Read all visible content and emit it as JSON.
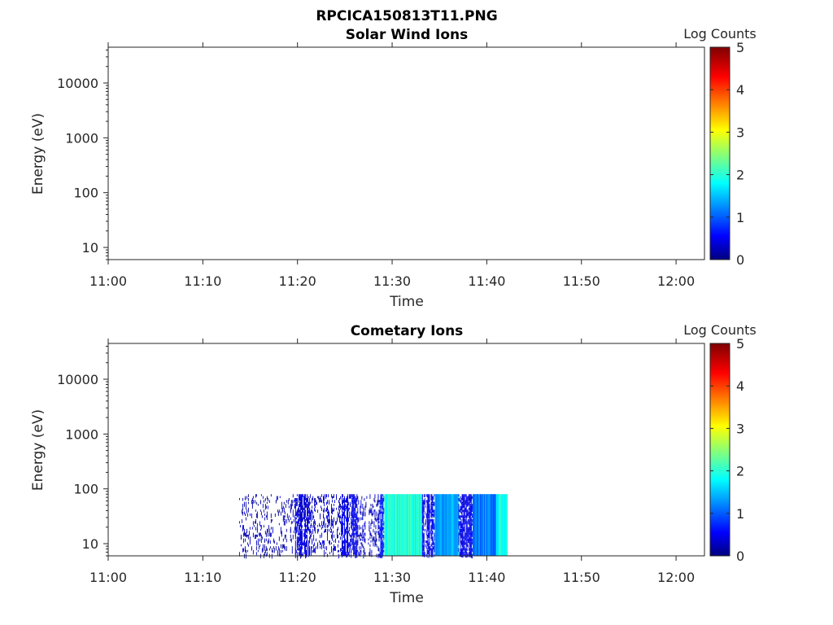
{
  "figure": {
    "title": "RPCICA150813T11.PNG"
  },
  "colors": {
    "axis": "#262626",
    "colormap": [
      "#00007f",
      "#0000ff",
      "#007fff",
      "#00ffff",
      "#7fff7f",
      "#ffff00",
      "#ff7f00",
      "#ff0000",
      "#7f0000"
    ]
  },
  "chart_data": [
    {
      "type": "heatmap",
      "title": "Solar Wind Ions",
      "xlabel": "Time",
      "ylabel": "Energy (eV)",
      "x_ticks": [
        "11:00",
        "11:10",
        "11:20",
        "11:30",
        "11:40",
        "11:50",
        "12:00"
      ],
      "xlim": [
        "11:00",
        "12:03"
      ],
      "y_scale": "log",
      "y_ticks": [
        10,
        100,
        1000,
        10000
      ],
      "y_tick_labels": [
        "10",
        "100",
        "1000",
        "10000"
      ],
      "ylim": [
        6,
        45000
      ],
      "colorbar": {
        "label": "Log Counts",
        "min": 0,
        "max": 5,
        "ticks": [
          "0",
          "1",
          "2",
          "3",
          "4",
          "5"
        ]
      },
      "segments": []
    },
    {
      "type": "heatmap",
      "title": "Cometary Ions",
      "xlabel": "Time",
      "ylabel": "Energy (eV)",
      "x_ticks": [
        "11:00",
        "11:10",
        "11:20",
        "11:30",
        "11:40",
        "11:50",
        "12:00"
      ],
      "xlim": [
        "11:00",
        "12:03"
      ],
      "y_scale": "log",
      "y_ticks": [
        10,
        100,
        1000,
        10000
      ],
      "y_tick_labels": [
        "10",
        "100",
        "1000",
        "10000"
      ],
      "ylim": [
        6,
        45000
      ],
      "colorbar": {
        "label": "Log Counts",
        "min": 0,
        "max": 5,
        "ticks": [
          "0",
          "1",
          "2",
          "3",
          "4",
          "5"
        ]
      },
      "segments": [
        {
          "start": "11:13:50",
          "end": "11:19:40",
          "level": 0.0,
          "density": 0.12,
          "e_min": 6,
          "e_max": 80
        },
        {
          "start": "11:19:40",
          "end": "11:21:20",
          "level": 0.2,
          "density": 0.6,
          "e_min": 6,
          "e_max": 80
        },
        {
          "start": "11:21:20",
          "end": "11:24:40",
          "level": 0.1,
          "density": 0.2,
          "e_min": 6,
          "e_max": 80
        },
        {
          "start": "11:24:40",
          "end": "11:26:20",
          "level": 0.3,
          "density": 0.65,
          "e_min": 6,
          "e_max": 80
        },
        {
          "start": "11:26:20",
          "end": "11:28:40",
          "level": 0.1,
          "density": 0.2,
          "e_min": 6,
          "e_max": 80
        },
        {
          "start": "11:28:40",
          "end": "11:29:10",
          "level": 0.5,
          "density": 0.9,
          "e_min": 6,
          "e_max": 80
        },
        {
          "start": "11:29:10",
          "end": "11:33:10",
          "level": 2.0,
          "density": 1.0,
          "e_min": 6,
          "e_max": 80
        },
        {
          "start": "11:33:10",
          "end": "11:34:30",
          "level": 0.3,
          "density": 0.55,
          "e_min": 6,
          "e_max": 80
        },
        {
          "start": "11:34:30",
          "end": "11:37:00",
          "level": 1.4,
          "density": 1.0,
          "e_min": 6,
          "e_max": 80
        },
        {
          "start": "11:37:00",
          "end": "11:38:30",
          "level": 0.3,
          "density": 0.6,
          "e_min": 6,
          "e_max": 80
        },
        {
          "start": "11:38:30",
          "end": "11:41:00",
          "level": 1.2,
          "density": 1.0,
          "e_min": 6,
          "e_max": 80
        },
        {
          "start": "11:41:00",
          "end": "11:42:10",
          "level": 1.9,
          "density": 1.0,
          "e_min": 6,
          "e_max": 80
        }
      ]
    }
  ]
}
